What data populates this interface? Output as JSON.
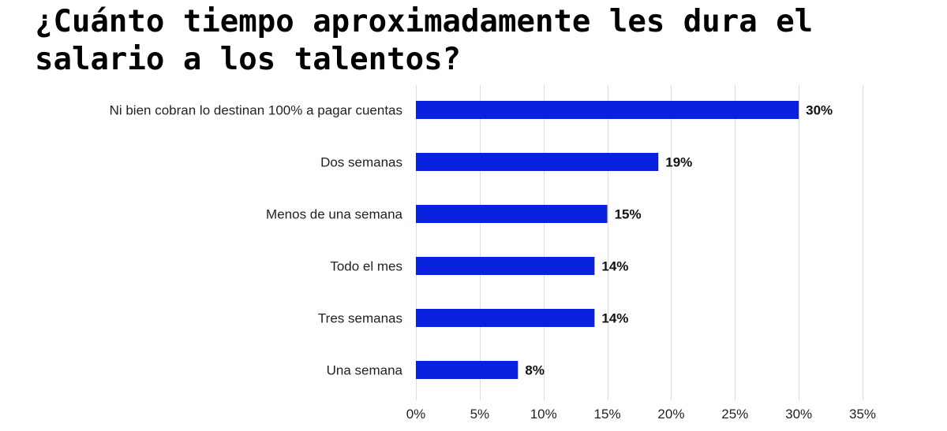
{
  "chart_data": {
    "type": "bar",
    "orientation": "horizontal",
    "title": "¿Cuánto tiempo aproximadamente les dura el salario a los talentos?",
    "categories": [
      "Ni bien cobran lo destinan 100% a pagar cuentas",
      "Dos semanas",
      "Menos de una semana",
      "Todo el mes",
      "Tres semanas",
      "Una semana"
    ],
    "values": [
      30,
      19,
      15,
      14,
      14,
      8
    ],
    "value_labels": [
      "30%",
      "19%",
      "15%",
      "14%",
      "14%",
      "8%"
    ],
    "xlim": [
      0,
      35
    ],
    "x_ticks": [
      0,
      5,
      10,
      15,
      20,
      25,
      30,
      35
    ],
    "x_tick_labels": [
      "0%",
      "5%",
      "10%",
      "15%",
      "20%",
      "25%",
      "30%",
      "35%"
    ],
    "xlabel": "",
    "ylabel": "",
    "grid": true,
    "legend": "none",
    "bar_color": "#0A22E0",
    "grid_color": "#DDDDDD"
  }
}
